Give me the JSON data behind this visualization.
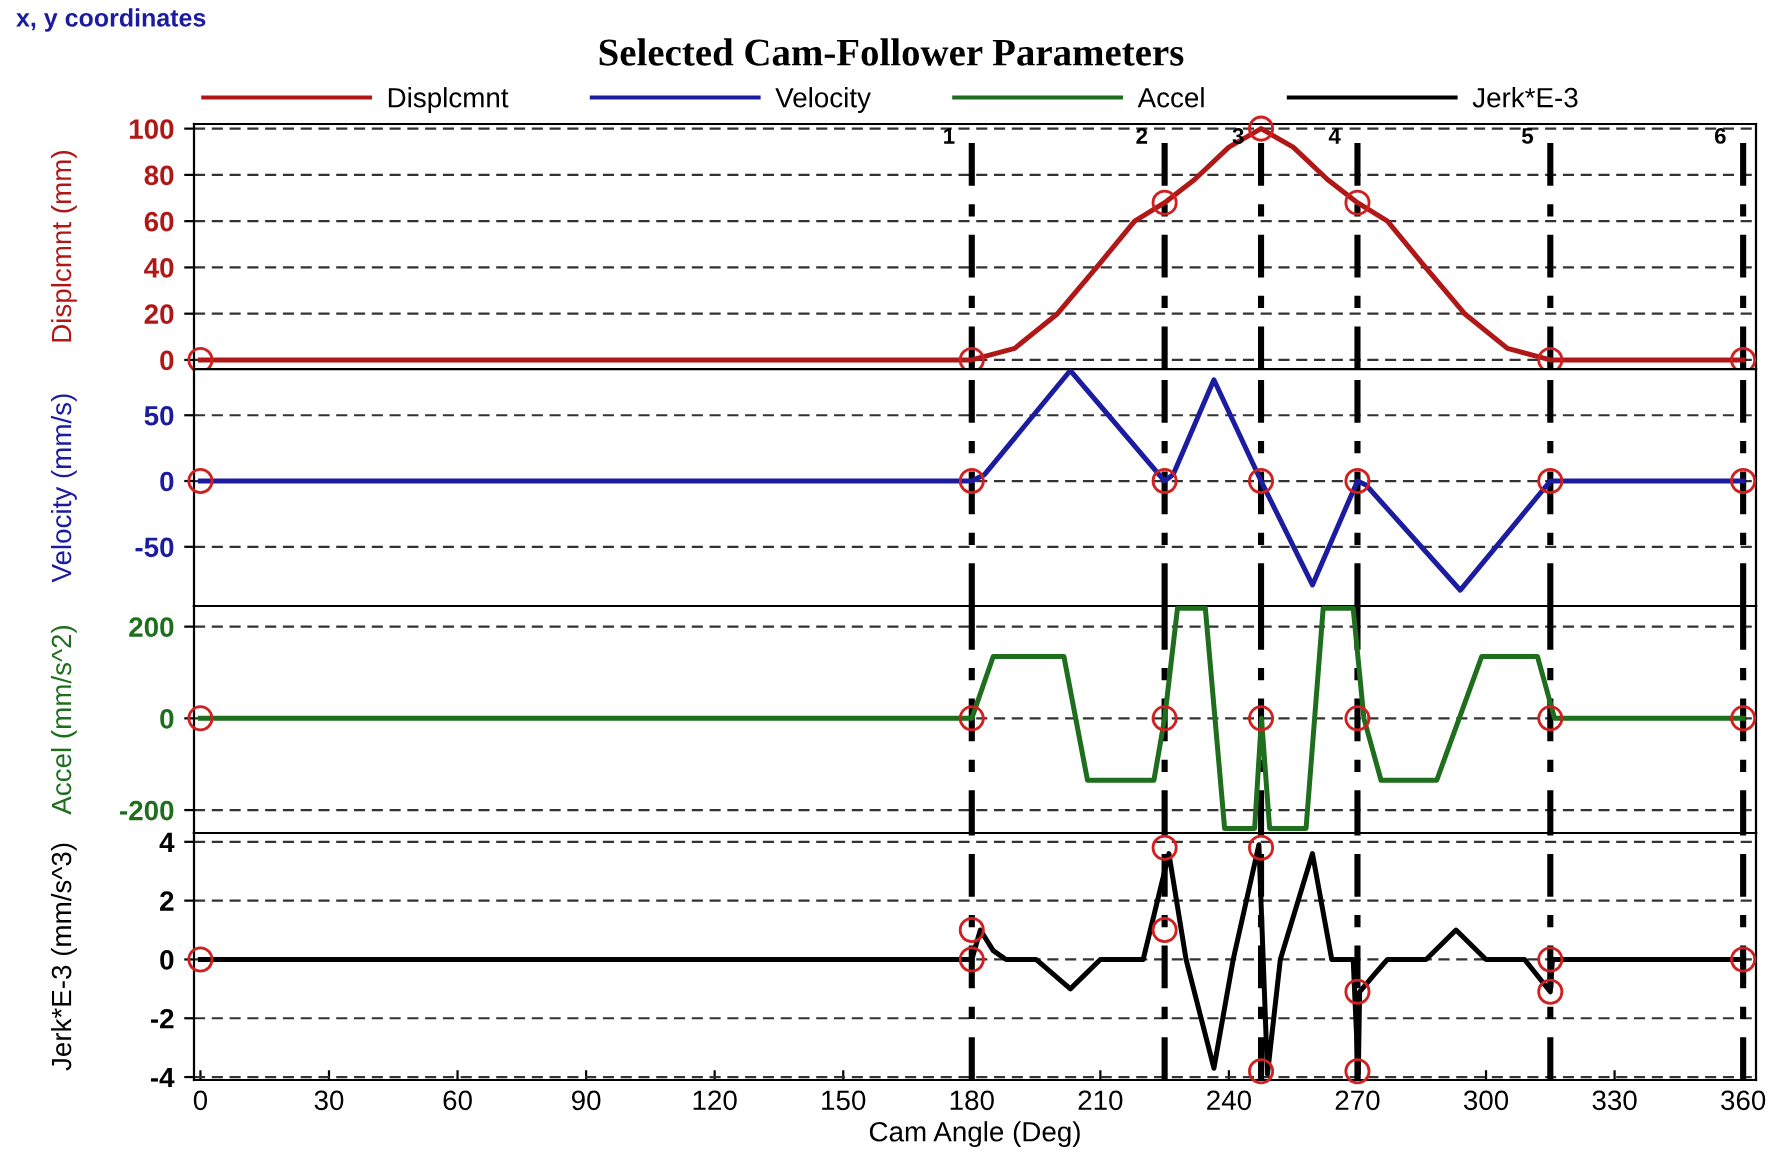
{
  "chart_data": [
    {
      "type": "line",
      "title": "Selected Cam-Follower Parameters",
      "annotations": [
        "x, y coordinates",
        {
          "text": "1",
          "x": 180,
          "y": 96
        },
        {
          "text": "2",
          "x": 225,
          "y": 96
        },
        {
          "text": "3",
          "x": 247.5,
          "y": 96
        },
        {
          "text": "4",
          "x": 270,
          "y": 96
        },
        {
          "text": "5",
          "x": 315,
          "y": 96
        },
        {
          "text": "6",
          "x": 360,
          "y": 96
        }
      ],
      "ylabel": "Displcmnt (mm)",
      "legend": "top",
      "grid": "y",
      "tick_labels": "y",
      "xlim": [
        -1.5,
        363
      ],
      "ylim": [
        -4,
        102
      ],
      "yticks": [
        0,
        20,
        40,
        60,
        80,
        100
      ],
      "series": [
        {
          "name": "Displcmnt",
          "color": "#b01818",
          "x": [
            0,
            180,
            190,
            200,
            210,
            218,
            225,
            232,
            240,
            247.5,
            255,
            263,
            270,
            277,
            285,
            295,
            305,
            315,
            360
          ],
          "values": [
            0,
            0,
            5,
            20,
            42,
            60,
            68,
            78,
            92,
            100,
            92,
            78,
            68,
            60,
            42,
            20,
            5,
            0,
            0
          ]
        },
        {
          "type": "scatter",
          "marker": "circle",
          "color": "#d02020",
          "x": [
            0,
            180,
            225,
            247.5,
            270,
            315,
            360
          ],
          "values": [
            0,
            0,
            68,
            100,
            68,
            0,
            0
          ]
        }
      ],
      "ref_lines": [
        {
          "axis": "x",
          "value": 180,
          "color": "#000000",
          "line_style": "dashed"
        },
        {
          "axis": "x",
          "value": 225,
          "color": "#000000",
          "line_style": "dashed"
        },
        {
          "axis": "x",
          "value": 247.5,
          "color": "#000000",
          "line_style": "dashed"
        },
        {
          "axis": "x",
          "value": 270,
          "color": "#000000",
          "line_style": "dashed"
        },
        {
          "axis": "x",
          "value": 315,
          "color": "#000000",
          "line_style": "dashed"
        },
        {
          "axis": "x",
          "value": 360,
          "color": "#000000",
          "line_style": "dashed"
        }
      ]
    },
    {
      "type": "line",
      "ylabel": "Velocity (mm/s)",
      "legend": "top",
      "grid": "y",
      "tick_labels": "y",
      "xlim": [
        -1.5,
        363
      ],
      "ylim": [
        -95,
        85
      ],
      "yticks": [
        -50,
        0,
        50
      ],
      "series": [
        {
          "name": "Velocity",
          "color": "#1c1ca0",
          "x": [
            0,
            180,
            183,
            203,
            225,
            227,
            236.5,
            247.5,
            259.5,
            270,
            272,
            294,
            315,
            360
          ],
          "values": [
            0,
            0,
            5,
            84,
            0,
            5,
            77,
            0,
            -79,
            0,
            -3,
            -83,
            0,
            0
          ]
        },
        {
          "type": "scatter",
          "marker": "circle",
          "color": "#d02020",
          "x": [
            0,
            180,
            225,
            247.5,
            270,
            315,
            360
          ],
          "values": [
            0,
            0,
            0,
            0,
            0,
            0,
            0
          ]
        }
      ],
      "ref_lines": [
        {
          "axis": "x",
          "value": 180,
          "color": "#000000",
          "line_style": "dashed"
        },
        {
          "axis": "x",
          "value": 225,
          "color": "#000000",
          "line_style": "dashed"
        },
        {
          "axis": "x",
          "value": 247.5,
          "color": "#000000",
          "line_style": "dashed"
        },
        {
          "axis": "x",
          "value": 270,
          "color": "#000000",
          "line_style": "dashed"
        },
        {
          "axis": "x",
          "value": 315,
          "color": "#000000",
          "line_style": "dashed"
        },
        {
          "axis": "x",
          "value": 360,
          "color": "#000000",
          "line_style": "dashed"
        }
      ]
    },
    {
      "type": "line",
      "ylabel": "Accel (mm/s^2)",
      "legend": "top",
      "grid": "y",
      "tick_labels": "y",
      "xlim": [
        -1.5,
        363
      ],
      "ylim": [
        -250,
        245
      ],
      "yticks": [
        -200,
        0,
        200
      ],
      "series": [
        {
          "name": "Accel",
          "color": "#1e6e1e",
          "x": [
            0,
            180,
            185,
            201.5,
            207,
            222.5,
            225,
            228,
            234.5,
            239,
            246,
            247.6,
            249.5,
            258,
            262,
            269,
            271.5,
            275.5,
            288.5,
            299,
            312,
            316,
            360
          ],
          "values": [
            0,
            0,
            135,
            135,
            -135,
            -135,
            0,
            240,
            240,
            -240,
            -240,
            0,
            -240,
            -240,
            240,
            240,
            0,
            -135,
            -135,
            135,
            135,
            0,
            0
          ]
        },
        {
          "type": "scatter",
          "marker": "circle",
          "color": "#d02020",
          "x": [
            0,
            180,
            225,
            247.5,
            270,
            315,
            360
          ],
          "values": [
            0,
            0,
            0,
            0,
            0,
            0,
            0
          ]
        }
      ],
      "ref_lines": [
        {
          "axis": "x",
          "value": 180,
          "color": "#000000",
          "line_style": "dashed"
        },
        {
          "axis": "x",
          "value": 225,
          "color": "#000000",
          "line_style": "dashed"
        },
        {
          "axis": "x",
          "value": 247.5,
          "color": "#000000",
          "line_style": "dashed"
        },
        {
          "axis": "x",
          "value": 270,
          "color": "#000000",
          "line_style": "dashed"
        },
        {
          "axis": "x",
          "value": 315,
          "color": "#000000",
          "line_style": "dashed"
        },
        {
          "axis": "x",
          "value": 360,
          "color": "#000000",
          "line_style": "dashed"
        }
      ]
    },
    {
      "type": "line",
      "xlabel": "Cam Angle (Deg)",
      "ylabel": "Jerk*E-3 (mm/s^3)",
      "legend": "top",
      "grid": "y",
      "xlim": [
        -1.5,
        363
      ],
      "ylim": [
        -4.1,
        4.3
      ],
      "yticks": [
        -4,
        -2,
        0,
        2,
        4
      ],
      "xticks": [
        0,
        30,
        60,
        90,
        120,
        150,
        180,
        210,
        240,
        270,
        300,
        330,
        360
      ],
      "series": [
        {
          "name": "Jerk*E-3",
          "color": "#000000",
          "x": [
            0,
            180,
            182,
            185,
            188,
            195,
            203,
            210,
            220,
            226,
            230,
            236.5,
            241,
            247,
            249,
            252,
            259.5,
            264,
            269,
            270.2,
            270.5,
            274,
            277,
            286,
            293,
            300,
            309,
            315,
            315.5,
            360
          ],
          "values": [
            0,
            0,
            1.0,
            0.3,
            0,
            0,
            -1.0,
            0,
            0,
            3.6,
            0,
            -3.7,
            0,
            3.9,
            -3.9,
            0,
            3.6,
            0,
            0,
            -3.9,
            -1.1,
            -0.5,
            0,
            0,
            1.0,
            0,
            0,
            -1.1,
            0,
            0
          ]
        },
        {
          "type": "scatter",
          "marker": "circle",
          "color": "#d02020",
          "x": [
            0,
            180,
            180,
            225,
            225,
            247.5,
            247.5,
            270,
            270,
            315,
            315,
            360
          ],
          "values": [
            0,
            1,
            0,
            3.8,
            1,
            3.8,
            -3.8,
            -1.1,
            -3.8,
            0,
            -1.1,
            0
          ]
        }
      ],
      "ref_lines": [
        {
          "axis": "x",
          "value": 180,
          "color": "#000000",
          "line_style": "dashed"
        },
        {
          "axis": "x",
          "value": 225,
          "color": "#000000",
          "line_style": "dashed"
        },
        {
          "axis": "x",
          "value": 247.5,
          "color": "#000000",
          "line_style": "dashed"
        },
        {
          "axis": "x",
          "value": 270,
          "color": "#000000",
          "line_style": "dashed"
        },
        {
          "axis": "x",
          "value": 315,
          "color": "#000000",
          "line_style": "dashed"
        },
        {
          "axis": "x",
          "value": 360,
          "color": "#000000",
          "line_style": "dashed"
        }
      ]
    }
  ]
}
